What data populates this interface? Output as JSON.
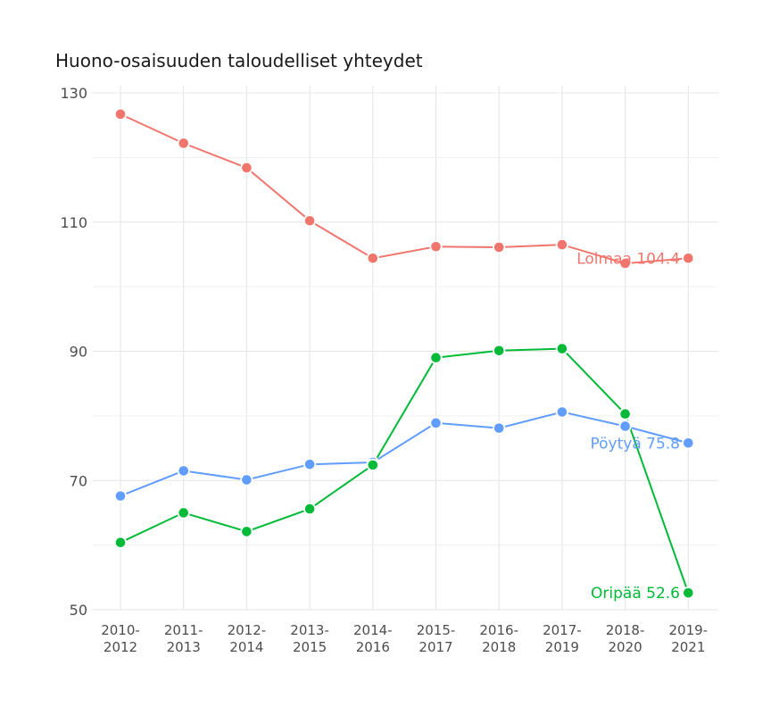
{
  "chart_data": {
    "type": "line",
    "title": "Huono-osaisuuden taloudelliset yhteydet",
    "categories": [
      [
        "2010-",
        "2012"
      ],
      [
        "2011-",
        "2013"
      ],
      [
        "2012-",
        "2014"
      ],
      [
        "2013-",
        "2015"
      ],
      [
        "2014-",
        "2016"
      ],
      [
        "2015-",
        "2017"
      ],
      [
        "2016-",
        "2018"
      ],
      [
        "2017-",
        "2019"
      ],
      [
        "2018-",
        "2020"
      ],
      [
        "2019-",
        "2021"
      ]
    ],
    "ylim": [
      50,
      130
    ],
    "yticks": [
      50,
      70,
      90,
      110,
      130
    ],
    "grid": true,
    "series": [
      {
        "name": "Loimaa",
        "end_label": "Loimaa 104.4",
        "color": "#F0766D",
        "values": [
          126.7,
          122.2,
          118.4,
          110.2,
          104.4,
          106.2,
          106.1,
          106.5,
          103.6,
          104.4
        ]
      },
      {
        "name": "Pöytyä",
        "end_label": "Pöytyä 75.8",
        "color": "#619CFF",
        "values": [
          67.6,
          71.5,
          70.1,
          72.5,
          72.8,
          78.9,
          78.1,
          80.6,
          78.4,
          75.8
        ]
      },
      {
        "name": "Oripää",
        "end_label": "Oripää 52.6",
        "color": "#00BA38",
        "values": [
          60.4,
          65.0,
          62.1,
          65.6,
          72.4,
          89.0,
          90.1,
          90.4,
          80.3,
          52.6
        ]
      }
    ]
  }
}
